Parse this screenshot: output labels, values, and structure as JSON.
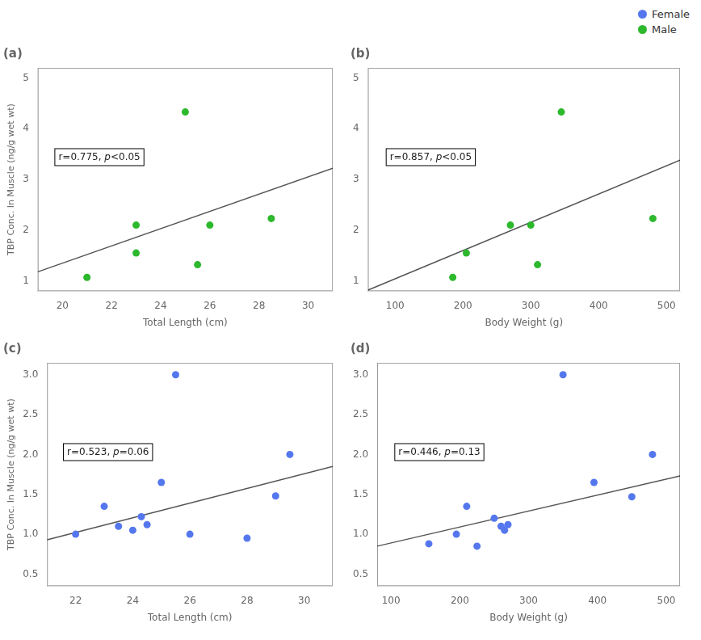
{
  "chart_data": [
    {
      "type": "scatter",
      "title": "(a)",
      "x_label": "Total Length (cm)",
      "y_label": "TBP Conc. In Muscle (ng/g wet wt)",
      "series": [
        {
          "name": "Male",
          "type": "scatter",
          "color": "#2db82d",
          "x": [
            21,
            23,
            23,
            25,
            25.5,
            26,
            28.5
          ],
          "values": [
            1.07,
            2.1,
            1.55,
            4.33,
            1.32,
            2.1,
            2.23
          ]
        },
        {
          "type": "line",
          "color": "#555555",
          "x": [
            19,
            31
          ],
          "values": [
            1.18,
            3.22
          ]
        }
      ],
      "xlim": [
        19,
        31
      ],
      "ylim": [
        0.8,
        5.2
      ],
      "xticks": [
        20,
        22,
        24,
        26,
        28,
        30
      ],
      "yticks": [
        1,
        2,
        3,
        4,
        5
      ],
      "annotation": "r=0.775, p<0.05",
      "grid": false,
      "legend": "upper right"
    },
    {
      "type": "scatter",
      "title": "(b)",
      "x_label": "Body Weight (g)",
      "series": [
        {
          "name": "Male",
          "type": "scatter",
          "color": "#2db82d",
          "x": [
            185,
            205,
            270,
            300,
            310,
            345,
            480
          ],
          "values": [
            1.07,
            1.55,
            2.1,
            2.1,
            1.32,
            4.33,
            2.23
          ]
        },
        {
          "type": "line",
          "color": "#555555",
          "x": [
            60,
            520
          ],
          "values": [
            0.82,
            3.38
          ]
        }
      ],
      "xlim": [
        60,
        520
      ],
      "ylim": [
        0.8,
        5.2
      ],
      "xticks": [
        100,
        200,
        300,
        400,
        500
      ],
      "yticks": [
        1,
        2,
        3,
        4,
        5
      ],
      "annotation": "r=0.857, p<0.05",
      "grid": false,
      "legend": "upper right"
    },
    {
      "type": "scatter",
      "title": "(c)",
      "x_label": "Total Length (cm)",
      "y_label": "TBP Conc. In Muscle (ng/g wet wt)",
      "series": [
        {
          "name": "Female",
          "type": "scatter",
          "color": "#5577ee",
          "x": [
            22,
            23,
            23.5,
            24,
            24.3,
            24.5,
            25,
            25.5,
            26,
            28,
            29,
            29.5
          ],
          "values": [
            1.0,
            1.35,
            1.1,
            1.05,
            1.22,
            1.12,
            1.65,
            3.0,
            1.0,
            0.95,
            1.48,
            2.0
          ]
        },
        {
          "type": "line",
          "color": "#555555",
          "x": [
            21,
            31
          ],
          "values": [
            0.93,
            1.85
          ]
        }
      ],
      "xlim": [
        21,
        31
      ],
      "ylim": [
        0.35,
        3.15
      ],
      "xticks": [
        22,
        24,
        26,
        28,
        30
      ],
      "yticks": [
        0.5,
        {
          "value": 1,
          "label": "1.0"
        },
        1.5,
        {
          "value": 2,
          "label": "2.0"
        },
        2.5,
        {
          "value": 3,
          "label": "3.0"
        }
      ],
      "annotation": "r=0.523, p=0.06",
      "grid": false,
      "legend": "upper right"
    },
    {
      "type": "scatter",
      "title": "(d)",
      "x_label": "Body Weight (g)",
      "series": [
        {
          "name": "Female",
          "type": "scatter",
          "color": "#5577ee",
          "x": [
            155,
            195,
            210,
            225,
            250,
            260,
            265,
            270,
            350,
            395,
            450,
            480
          ],
          "values": [
            0.88,
            1.0,
            1.35,
            0.85,
            1.2,
            1.1,
            1.05,
            1.12,
            3.0,
            1.65,
            1.47,
            2.0
          ]
        },
        {
          "type": "line",
          "color": "#555555",
          "x": [
            80,
            520
          ],
          "values": [
            0.85,
            1.73
          ]
        }
      ],
      "xlim": [
        80,
        520
      ],
      "ylim": [
        0.35,
        3.15
      ],
      "xticks": [
        100,
        200,
        300,
        400,
        500
      ],
      "yticks": [
        0.5,
        {
          "value": 1,
          "label": "1.0"
        },
        1.5,
        {
          "value": 2,
          "label": "2.0"
        },
        2.5,
        {
          "value": 3,
          "label": "3.0"
        }
      ],
      "annotation": "r=0.446, p=0.13",
      "grid": false,
      "legend": "upper right"
    }
  ]
}
